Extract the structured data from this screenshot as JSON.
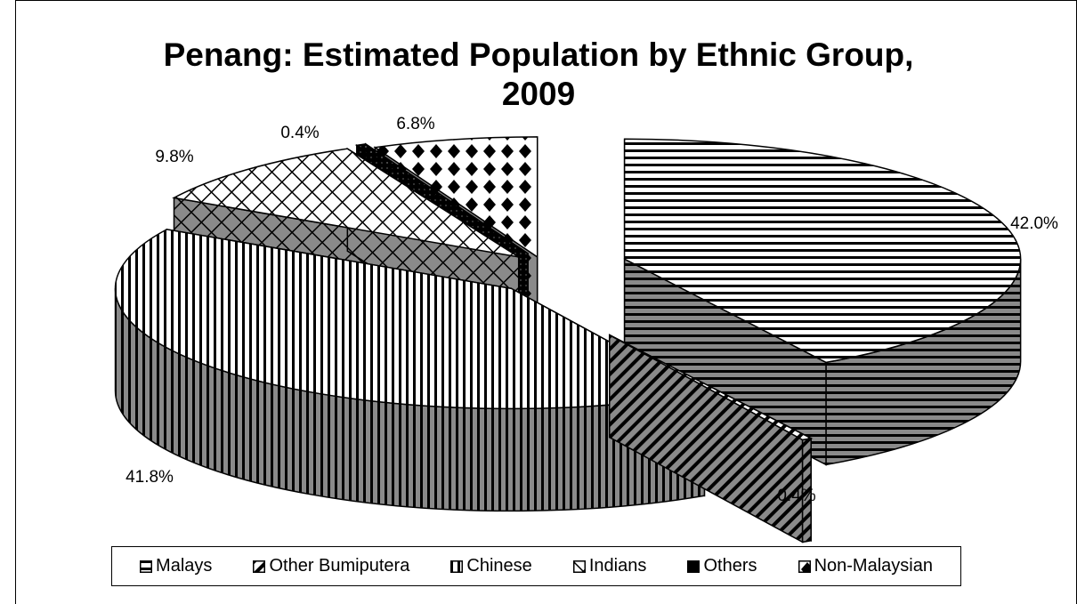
{
  "chart_data": {
    "type": "pie",
    "title_lines": [
      "Penang: Estimated Population by Ethnic Group,",
      "2009"
    ],
    "slices": [
      {
        "label": "Malays",
        "value": 42.0,
        "pct_label": "42.0%",
        "pattern": "hstripe"
      },
      {
        "label": "Other Bumiputera",
        "value": 0.4,
        "pct_label": "0.4%",
        "pattern": "diag"
      },
      {
        "label": "Chinese",
        "value": 41.8,
        "pct_label": "41.8%",
        "pattern": "vstripe"
      },
      {
        "label": "Indians",
        "value": 9.8,
        "pct_label": "9.8%",
        "pattern": "crosshatch"
      },
      {
        "label": "Others",
        "value": 0.4,
        "pct_label": "0.4%",
        "pattern": "dots"
      },
      {
        "label": "Non-Malaysian",
        "value": 6.8,
        "pct_label": "6.8%",
        "pattern": "checker"
      }
    ],
    "legend_position": "bottom",
    "style": "3d-exploded"
  }
}
